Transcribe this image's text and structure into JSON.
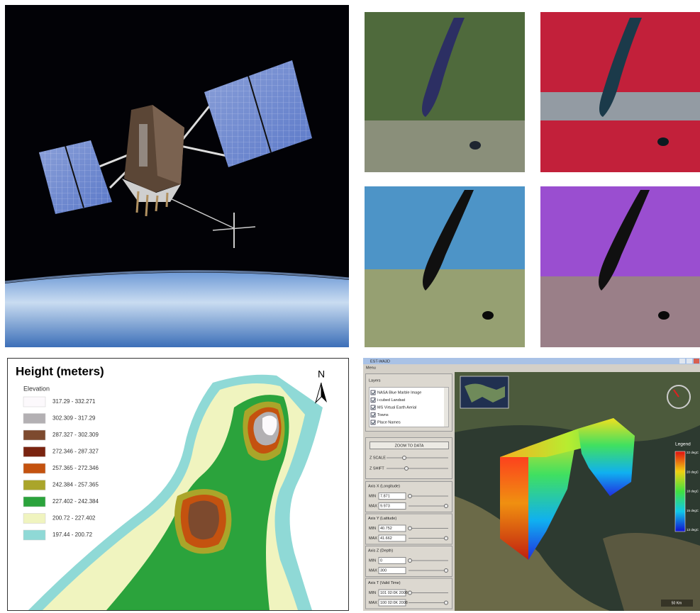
{
  "elevation_map": {
    "title": "Height (meters)",
    "legend_title": "Elevation",
    "north": "N",
    "legend": [
      {
        "label": "317.29 - 332.271",
        "color": "#fcf9fc"
      },
      {
        "label": "302.309 - 317.29",
        "color": "#b3b0b3"
      },
      {
        "label": "287.327 - 302.309",
        "color": "#7d4a2e"
      },
      {
        "label": "272.346 - 287.327",
        "color": "#7a2410"
      },
      {
        "label": "257.365 - 272.346",
        "color": "#c4520f"
      },
      {
        "label": "242.384 - 257.365",
        "color": "#aaa52a"
      },
      {
        "label": "227.402 - 242.384",
        "color": "#2ba33c"
      },
      {
        "label": "200.72 - 227.402",
        "color": "#f0f4bf"
      },
      {
        "label": "197.44 - 200.72",
        "color": "#8fd9d6"
      }
    ]
  },
  "app": {
    "window_title": "EST-WA3D",
    "menu": "Menu",
    "layers_title": "Layers",
    "layers": [
      "NASA Blue Marble Image",
      "i-cubed Landsat",
      "MS Virtual Earth Aerial",
      "Towns",
      "Place Names"
    ],
    "zoom_button": "ZOOM TO DATA",
    "z_scale": "Z SCALE",
    "z_shift": "Z SHIFT",
    "axes": [
      {
        "title": "Axis X (Longitude)",
        "min_label": "MIN",
        "min": "7.871",
        "max_label": "MAX",
        "max": "9.973"
      },
      {
        "title": "Axis Y (Latitude)",
        "min_label": "MIN",
        "min": "40.752",
        "max_label": "MAX",
        "max": "41.662"
      },
      {
        "title": "Axis Z (Depth)",
        "min_label": "MIN",
        "min": "0",
        "max_label": "MAX",
        "max": "300"
      },
      {
        "title": "Axis T (Valid Time)",
        "min_label": "MIN",
        "min": "101 02:0K 2008",
        "max_label": "MAX",
        "max": "100 02:0K 2008"
      }
    ],
    "legend_title": "Legend",
    "legend_labels": [
      "22 degC",
      "20 degC",
      "18 degC",
      "15 degC",
      "13 degC"
    ],
    "scale": "50 Km"
  }
}
